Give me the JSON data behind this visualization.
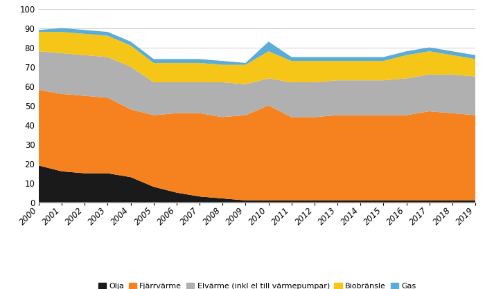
{
  "years": [
    2000,
    2001,
    2002,
    2003,
    2004,
    2005,
    2006,
    2007,
    2008,
    2009,
    2010,
    2011,
    2012,
    2013,
    2014,
    2015,
    2016,
    2017,
    2018,
    2019
  ],
  "olja": [
    19,
    16,
    15,
    15,
    13,
    8,
    5,
    3,
    2,
    1,
    1,
    1,
    1,
    1,
    1,
    1,
    1,
    1,
    1,
    1
  ],
  "fjarrvarme": [
    39,
    40,
    40,
    39,
    35,
    37,
    41,
    43,
    42,
    44,
    49,
    43,
    43,
    44,
    44,
    44,
    44,
    46,
    45,
    44
  ],
  "elvarme": [
    20,
    21,
    21,
    21,
    22,
    17,
    16,
    16,
    18,
    16,
    14,
    18,
    18,
    18,
    18,
    18,
    19,
    19,
    20,
    20
  ],
  "biobransle": [
    10,
    11,
    11,
    11,
    11,
    10,
    10,
    10,
    9,
    10,
    14,
    11,
    11,
    10,
    10,
    10,
    12,
    12,
    10,
    9
  ],
  "gas": [
    1,
    2,
    2,
    2,
    2,
    2,
    2,
    2,
    2,
    1,
    5,
    2,
    2,
    2,
    2,
    2,
    2,
    2,
    2,
    2
  ],
  "colors": {
    "olja": "#1a1a1a",
    "fjarrvarme": "#f5821e",
    "elvarme": "#b0b0b0",
    "biobransle": "#f5c518",
    "gas": "#5bacd6"
  },
  "labels": {
    "olja": "Olja",
    "fjarrvarme": "Fjärrvärme",
    "elvarme": "Elvärme (inkl el till värmepumpar)",
    "biobransle": "Biobränsle",
    "gas": "Gas"
  },
  "ylim": [
    0,
    100
  ],
  "yticks": [
    0,
    10,
    20,
    30,
    40,
    50,
    60,
    70,
    80,
    90,
    100
  ],
  "background_color": "#ffffff",
  "grid_color": "#cccccc"
}
